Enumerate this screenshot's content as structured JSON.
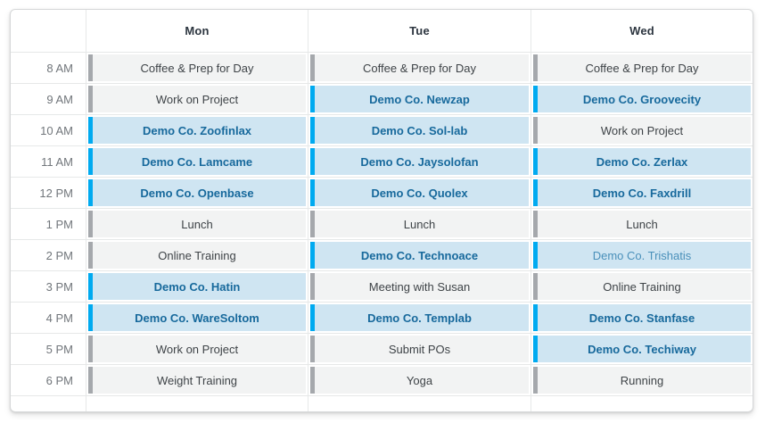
{
  "header": {
    "days": [
      "Mon",
      "Tue",
      "Wed"
    ]
  },
  "colors": {
    "demo_bar": "#00aaf0",
    "demo_background": "#cfe5f2",
    "demo_text": "#17699c",
    "demo_light_text": "#4a90ba",
    "default_bar": "#a5a8ac",
    "default_background": "#f2f3f3",
    "default_text": "#3e4347",
    "grid_line": "#e6e8e8",
    "time_label": "#71767b",
    "day_header_text": "#2d3640"
  },
  "schedule": {
    "rows": [
      {
        "time": "8 AM",
        "events": [
          {
            "label": "Coffee & Prep for Day",
            "type": "default"
          },
          {
            "label": "Coffee & Prep for Day",
            "type": "default"
          },
          {
            "label": "Coffee & Prep for Day",
            "type": "default"
          }
        ]
      },
      {
        "time": "9 AM",
        "events": [
          {
            "label": "Work on Project",
            "type": "default"
          },
          {
            "label": "Demo Co. Newzap",
            "type": "demo"
          },
          {
            "label": "Demo Co. Groovecity",
            "type": "demo"
          }
        ]
      },
      {
        "time": "10 AM",
        "events": [
          {
            "label": "Demo Co. Zoofinlax",
            "type": "demo"
          },
          {
            "label": "Demo Co. Sol-lab",
            "type": "demo"
          },
          {
            "label": "Work on Project",
            "type": "default"
          }
        ]
      },
      {
        "time": "11 AM",
        "events": [
          {
            "label": "Demo Co. Lamcame",
            "type": "demo"
          },
          {
            "label": "Demo Co. Jaysolofan",
            "type": "demo"
          },
          {
            "label": "Demo Co. Zerlax",
            "type": "demo"
          }
        ]
      },
      {
        "time": "12 PM",
        "events": [
          {
            "label": "Demo Co. Openbase",
            "type": "demo"
          },
          {
            "label": "Demo Co. Quolex",
            "type": "demo"
          },
          {
            "label": "Demo Co. Faxdrill",
            "type": "demo"
          }
        ]
      },
      {
        "time": "1 PM",
        "events": [
          {
            "label": "Lunch",
            "type": "default"
          },
          {
            "label": "Lunch",
            "type": "default"
          },
          {
            "label": "Lunch",
            "type": "default"
          }
        ]
      },
      {
        "time": "2 PM",
        "events": [
          {
            "label": "Online Training",
            "type": "default"
          },
          {
            "label": "Demo Co. Technoace",
            "type": "demo"
          },
          {
            "label": "Demo Co. Trishatis",
            "type": "demo-light"
          }
        ]
      },
      {
        "time": "3 PM",
        "events": [
          {
            "label": "Demo Co. Hatin",
            "type": "demo"
          },
          {
            "label": "Meeting with Susan",
            "type": "default"
          },
          {
            "label": "Online Training",
            "type": "default"
          }
        ]
      },
      {
        "time": "4 PM",
        "events": [
          {
            "label": "Demo Co. WareSoltom",
            "type": "demo"
          },
          {
            "label": "Demo Co. Templab",
            "type": "demo"
          },
          {
            "label": "Demo Co. Stanfase",
            "type": "demo"
          }
        ]
      },
      {
        "time": "5 PM",
        "events": [
          {
            "label": "Work on Project",
            "type": "default"
          },
          {
            "label": "Submit POs",
            "type": "default"
          },
          {
            "label": "Demo Co. Techiway",
            "type": "demo"
          }
        ]
      },
      {
        "time": "6 PM",
        "events": [
          {
            "label": "Weight Training",
            "type": "default"
          },
          {
            "label": "Yoga",
            "type": "default"
          },
          {
            "label": "Running",
            "type": "default"
          }
        ]
      }
    ]
  }
}
